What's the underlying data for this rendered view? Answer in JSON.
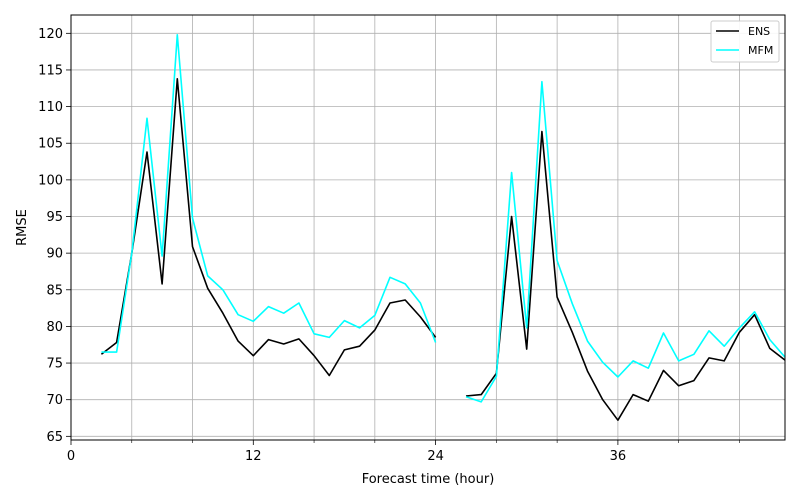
{
  "chart_data": {
    "type": "line",
    "title": "",
    "xlabel": "Forecast time (hour)",
    "ylabel": "RMSE",
    "xlim": [
      0,
      47
    ],
    "ylim": [
      64.5,
      122.5
    ],
    "xticks": [
      0,
      12,
      24,
      36
    ],
    "xticks_minor": [
      4,
      8,
      16,
      20,
      28,
      32,
      40,
      44
    ],
    "yticks": [
      65,
      70,
      75,
      80,
      85,
      90,
      95,
      100,
      105,
      110,
      115,
      120
    ],
    "grid": true,
    "legend_position": "top-right",
    "series": [
      {
        "name": "ENS",
        "color": "#000000",
        "segments": [
          {
            "x": [
              2,
              3,
              4,
              5,
              6,
              7,
              8,
              9,
              10,
              11,
              12,
              13,
              14,
              15,
              16,
              17,
              18,
              19,
              20,
              21,
              22,
              23,
              24
            ],
            "y": [
              76.2,
              77.8,
              90.0,
              103.8,
              85.8,
              113.8,
              90.9,
              85.2,
              81.8,
              78.0,
              76.0,
              78.2,
              77.6,
              78.3,
              76.0,
              73.3,
              76.8,
              77.3,
              79.5,
              83.2,
              83.6,
              81.3,
              78.5
            ]
          },
          {
            "x": [
              26,
              27,
              28,
              29,
              30,
              31,
              32,
              33,
              34,
              35,
              36,
              37,
              38,
              39,
              40,
              41,
              42,
              43,
              44,
              45,
              46,
              47
            ],
            "y": [
              70.5,
              70.7,
              73.6,
              95.0,
              76.9,
              106.6,
              84.0,
              79.2,
              73.9,
              70.0,
              67.2,
              70.7,
              69.8,
              74.0,
              71.9,
              72.6,
              75.7,
              75.3,
              79.2,
              81.6,
              77.0,
              75.4
            ]
          }
        ]
      },
      {
        "name": "MFM",
        "color": "#00ffff",
        "segments": [
          {
            "x": [
              2,
              3,
              4,
              5,
              6,
              7,
              8,
              9,
              10,
              11,
              12,
              13,
              14,
              15,
              16,
              17,
              18,
              19,
              20,
              21,
              22,
              23,
              24
            ],
            "y": [
              76.5,
              76.5,
              90.0,
              108.4,
              89.6,
              119.8,
              94.8,
              86.9,
              85.0,
              81.6,
              80.7,
              82.7,
              81.8,
              83.2,
              79.0,
              78.5,
              80.8,
              79.8,
              81.5,
              86.7,
              85.8,
              83.2,
              77.8
            ]
          },
          {
            "x": [
              26,
              27,
              28,
              29,
              30,
              31,
              32,
              33,
              34,
              35,
              36,
              37,
              38,
              39,
              40,
              41,
              42,
              43,
              44,
              45,
              46,
              47
            ],
            "y": [
              70.4,
              69.7,
              73.2,
              101.0,
              79.8,
              113.4,
              89.0,
              83.1,
              78.0,
              75.1,
              73.1,
              75.3,
              74.3,
              79.1,
              75.3,
              76.2,
              79.4,
              77.3,
              79.8,
              82.0,
              78.2,
              75.8
            ]
          }
        ]
      }
    ]
  }
}
